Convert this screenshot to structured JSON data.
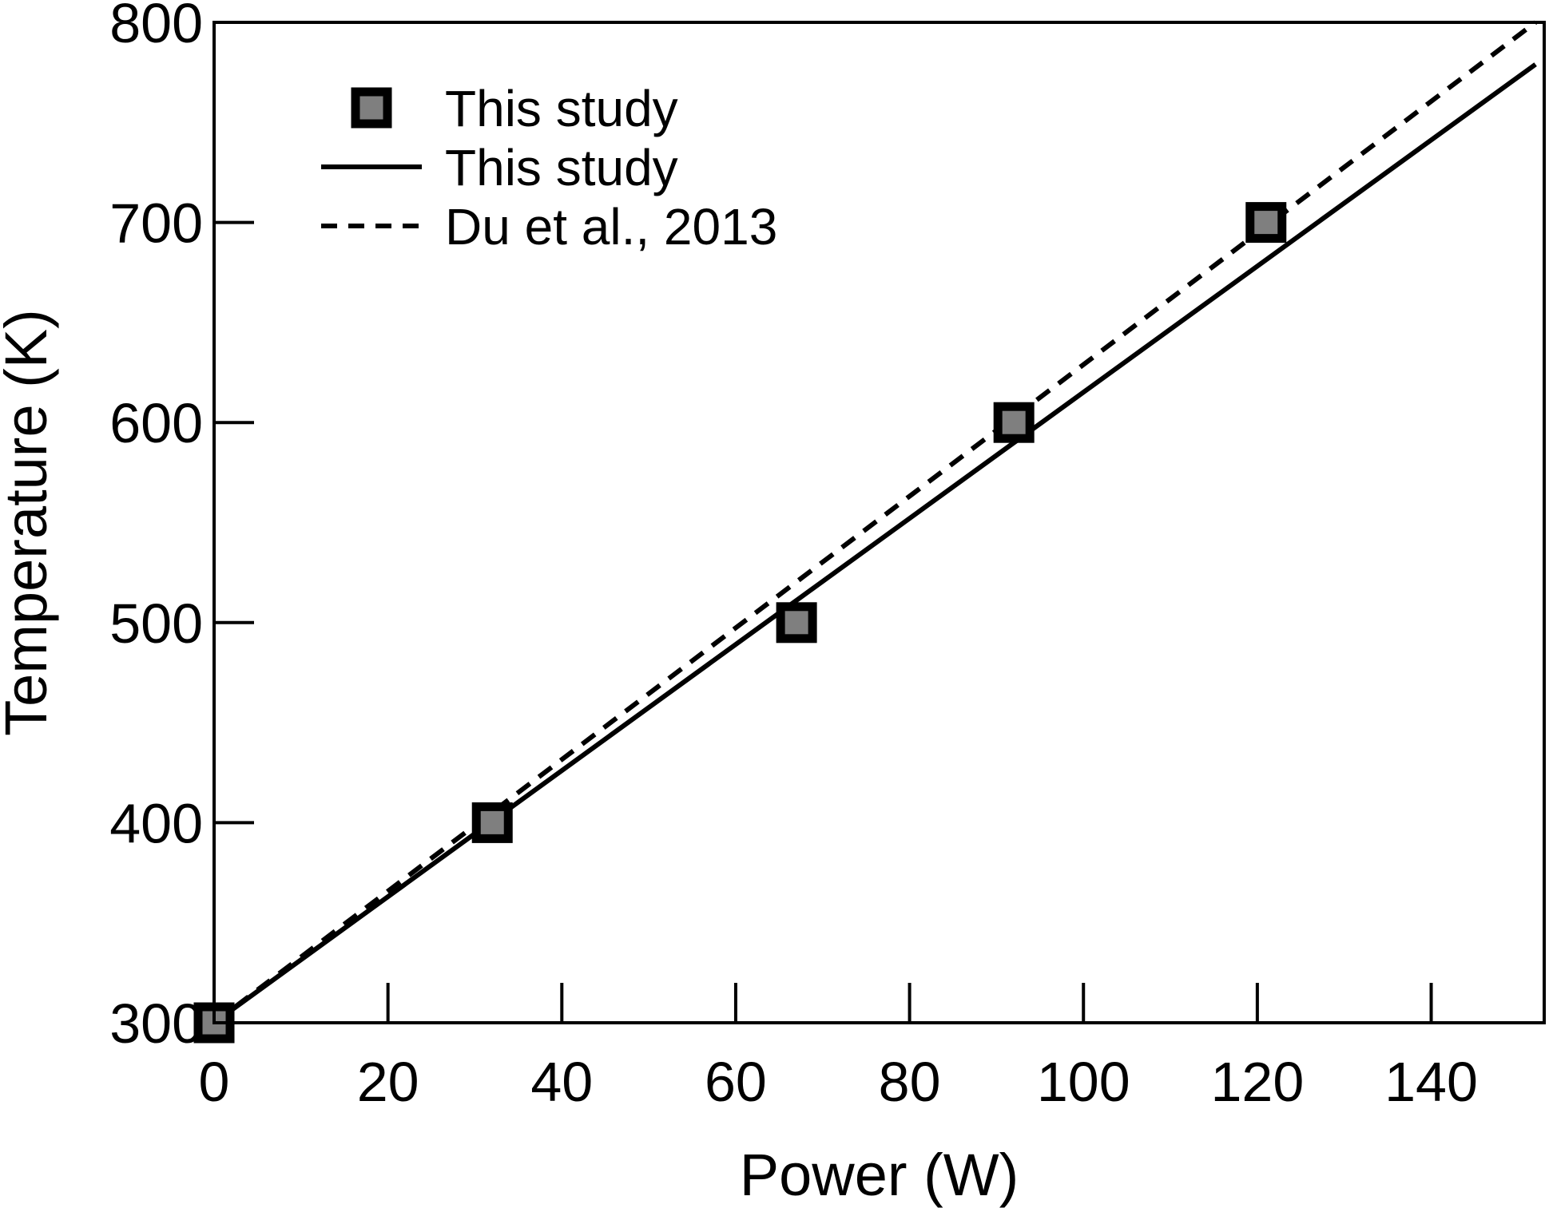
{
  "chart_data": {
    "type": "scatter",
    "title": "",
    "xlabel": "Power (W)",
    "ylabel": "Temperature (K)",
    "xlim": [
      0,
      153
    ],
    "ylim": [
      300,
      800
    ],
    "xticks": [
      0,
      20,
      40,
      60,
      80,
      100,
      120,
      140
    ],
    "yticks": [
      300,
      400,
      500,
      600,
      700,
      800
    ],
    "grid": false,
    "legend_position": "top-left",
    "colors": {
      "marker_fill": "#7f7f7f",
      "marker_edge": "#000000",
      "line": "#000000"
    },
    "series": [
      {
        "name": "This study",
        "kind": "markers",
        "marker": "square",
        "x": [
          0,
          32,
          67,
          92,
          121
        ],
        "y": [
          300,
          400,
          500,
          600,
          700
        ]
      },
      {
        "name": "This study",
        "kind": "line",
        "line_style": "solid",
        "x": [
          0,
          152
        ],
        "y": [
          300,
          779
        ]
      },
      {
        "name": "Du et al., 2013",
        "kind": "line",
        "line_style": "dashed",
        "x": [
          0,
          152
        ],
        "y": [
          300,
          800
        ]
      }
    ]
  }
}
